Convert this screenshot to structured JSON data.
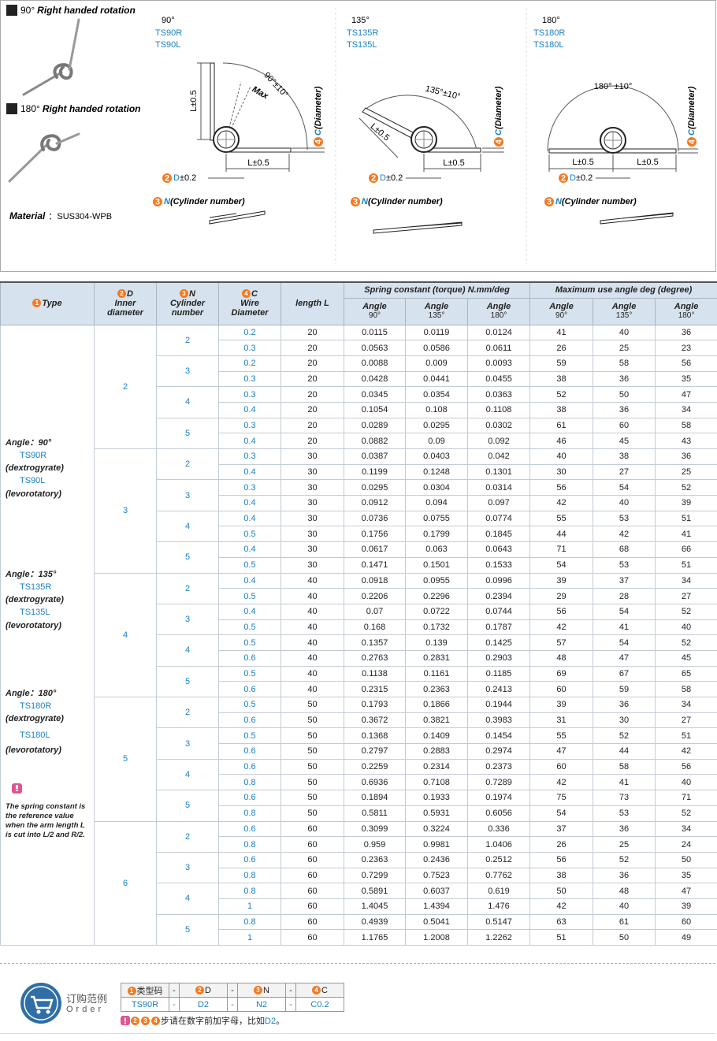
{
  "legend": [
    {
      "deg": "90°",
      "text": "Right handed rotation"
    },
    {
      "deg": "180°",
      "text": "Right handed rotation"
    }
  ],
  "material": {
    "label": "Material",
    "value": "：SUS304-WPB"
  },
  "diagrams": [
    {
      "angle": "90°",
      "codes": [
        "TS90R",
        "TS90L"
      ],
      "arc": "90°±10°",
      "max": "Max",
      "l": [
        "L±0.5",
        "L±0.5"
      ],
      "c": {
        "num": "4",
        "code": "C",
        "text": "(Diameter)"
      },
      "d": {
        "num": "2",
        "code": "D",
        "text": "±0.2"
      },
      "n": {
        "num": "3",
        "code": "N",
        "text": "(Cylinder number)"
      }
    },
    {
      "angle": "135°",
      "codes": [
        "TS135R",
        "TS135L"
      ],
      "arc": "135°±10°",
      "l": [
        "L±0.5",
        "L±0.5"
      ],
      "c": {
        "num": "4",
        "code": "C",
        "text": "(Diameter)"
      },
      "d": {
        "num": "2",
        "code": "D",
        "text": "±0.2"
      },
      "n": {
        "num": "3",
        "code": "N",
        "text": "(Cylinder number)"
      }
    },
    {
      "angle": "180°",
      "codes": [
        "TS180R",
        "TS180L"
      ],
      "arc": "180° ±10°",
      "l": [
        "L±0.5",
        "L±0.5"
      ],
      "c": {
        "num": "4",
        "code": "C",
        "text": "(Diameter)"
      },
      "d": {
        "num": "2",
        "code": "D",
        "text": "±0.2"
      },
      "n": {
        "num": "3",
        "code": "N",
        "text": "(Cylinder number)"
      }
    }
  ],
  "table": {
    "header": {
      "type": {
        "num": "1",
        "text": "Type"
      },
      "d": {
        "num": "2",
        "code": "D",
        "text": "Inner diameter"
      },
      "n": {
        "num": "3",
        "code": "N",
        "text": "Cylinder number"
      },
      "c": {
        "num": "4",
        "code": "C",
        "text": "Wire Diameter"
      },
      "length": "length L",
      "spring": "Spring constant (torque) N.mm/deg",
      "max": "Maximum use angle  deg (degree)",
      "spring_cols": [
        {
          "label": "Angle",
          "deg": "90°"
        },
        {
          "label": "Angle",
          "deg": "135°"
        },
        {
          "label": "Angle",
          "deg": "180°"
        }
      ],
      "max_cols": [
        {
          "label": "Angle",
          "deg": "90°"
        },
        {
          "label": "Angle",
          "deg": "135°"
        },
        {
          "label": "Angle",
          "deg": "180°"
        }
      ]
    },
    "type_column": {
      "groups": [
        {
          "angle": "Angle：90°",
          "r": "TS90R",
          "r_note": "(dextrogyrate)",
          "l": "TS90L",
          "l_note": "(levorotatory)"
        },
        {
          "angle": "Angle：135°",
          "r": "TS135R",
          "r_note": "(dextrogyrate)",
          "l": "TS135L",
          "l_note": "(levorotatory)"
        },
        {
          "angle": "Angle：180°",
          "r": "TS180R",
          "r_note": "(dextrogyrate)",
          "l": "TS180L",
          "l_note": "(levorotatory)"
        }
      ],
      "note": "The spring constant is the reference value when the arm length L is cut into L/2 and R/2."
    },
    "groups": [
      {
        "d": 2,
        "sub": [
          {
            "n": 2,
            "rows": [
              [
                0.2,
                20,
                0.0115,
                0.0119,
                0.0124,
                41,
                40,
                36
              ],
              [
                0.3,
                20,
                0.0563,
                0.0586,
                0.0611,
                26,
                25,
                23
              ]
            ]
          },
          {
            "n": 3,
            "rows": [
              [
                0.2,
                20,
                0.0088,
                0.009,
                0.0093,
                59,
                58,
                56
              ],
              [
                0.3,
                20,
                0.0428,
                0.0441,
                0.0455,
                38,
                36,
                35
              ]
            ]
          },
          {
            "n": 4,
            "rows": [
              [
                0.3,
                20,
                0.0345,
                0.0354,
                0.0363,
                52,
                50,
                47
              ],
              [
                0.4,
                20,
                0.1054,
                0.108,
                0.1108,
                38,
                36,
                34
              ]
            ]
          },
          {
            "n": 5,
            "rows": [
              [
                0.3,
                20,
                0.0289,
                0.0295,
                0.0302,
                61,
                60,
                58
              ],
              [
                0.4,
                20,
                0.0882,
                0.09,
                0.092,
                46,
                45,
                43
              ]
            ]
          }
        ]
      },
      {
        "d": 3,
        "sub": [
          {
            "n": 2,
            "rows": [
              [
                0.3,
                30,
                0.0387,
                0.0403,
                0.042,
                40,
                38,
                36
              ],
              [
                0.4,
                30,
                0.1199,
                0.1248,
                0.1301,
                30,
                27,
                25
              ]
            ]
          },
          {
            "n": 3,
            "rows": [
              [
                0.3,
                30,
                0.0295,
                0.0304,
                0.0314,
                56,
                54,
                52
              ],
              [
                0.4,
                30,
                0.0912,
                0.094,
                0.097,
                42,
                40,
                39
              ]
            ]
          },
          {
            "n": 4,
            "rows": [
              [
                0.4,
                30,
                0.0736,
                0.0755,
                0.0774,
                55,
                53,
                51
              ],
              [
                0.5,
                30,
                0.1756,
                0.1799,
                0.1845,
                44,
                42,
                41
              ]
            ]
          },
          {
            "n": 5,
            "rows": [
              [
                0.4,
                30,
                0.0617,
                0.063,
                0.0643,
                71,
                68,
                66
              ],
              [
                0.5,
                30,
                0.1471,
                0.1501,
                0.1533,
                54,
                53,
                51
              ]
            ]
          }
        ]
      },
      {
        "d": 4,
        "sub": [
          {
            "n": 2,
            "rows": [
              [
                0.4,
                40,
                0.0918,
                0.0955,
                0.0996,
                39,
                37,
                34
              ],
              [
                0.5,
                40,
                0.2206,
                0.2296,
                0.2394,
                29,
                28,
                27
              ]
            ]
          },
          {
            "n": 3,
            "rows": [
              [
                0.4,
                40,
                0.07,
                0.0722,
                0.0744,
                56,
                54,
                52
              ],
              [
                0.5,
                40,
                0.168,
                0.1732,
                0.1787,
                42,
                41,
                40
              ]
            ]
          },
          {
            "n": 4,
            "rows": [
              [
                0.5,
                40,
                0.1357,
                0.139,
                0.1425,
                57,
                54,
                52
              ],
              [
                0.6,
                40,
                0.2763,
                0.2831,
                0.2903,
                48,
                47,
                45
              ]
            ]
          },
          {
            "n": 5,
            "rows": [
              [
                0.5,
                40,
                0.1138,
                0.1161,
                0.1185,
                69,
                67,
                65
              ],
              [
                0.6,
                40,
                0.2315,
                0.2363,
                0.2413,
                60,
                59,
                58
              ]
            ]
          }
        ]
      },
      {
        "d": 5,
        "sub": [
          {
            "n": 2,
            "rows": [
              [
                0.5,
                50,
                0.1793,
                0.1866,
                0.1944,
                39,
                36,
                34
              ],
              [
                0.6,
                50,
                0.3672,
                0.3821,
                0.3983,
                31,
                30,
                27
              ]
            ]
          },
          {
            "n": 3,
            "rows": [
              [
                0.5,
                50,
                0.1368,
                0.1409,
                0.1454,
                55,
                52,
                51
              ],
              [
                0.6,
                50,
                0.2797,
                0.2883,
                0.2974,
                47,
                44,
                42
              ]
            ]
          },
          {
            "n": 4,
            "rows": [
              [
                0.6,
                50,
                0.2259,
                0.2314,
                0.2373,
                60,
                58,
                56
              ],
              [
                0.8,
                50,
                0.6936,
                0.7108,
                0.7289,
                42,
                41,
                40
              ]
            ]
          },
          {
            "n": 5,
            "rows": [
              [
                0.6,
                50,
                0.1894,
                0.1933,
                0.1974,
                75,
                73,
                71
              ],
              [
                0.8,
                50,
                0.5811,
                0.5931,
                0.6056,
                54,
                53,
                52
              ]
            ]
          }
        ]
      },
      {
        "d": 6,
        "sub": [
          {
            "n": 2,
            "rows": [
              [
                0.6,
                60,
                0.3099,
                0.3224,
                0.336,
                37,
                36,
                34
              ],
              [
                0.8,
                60,
                0.959,
                0.9981,
                1.0406,
                26,
                25,
                24
              ]
            ]
          },
          {
            "n": 3,
            "rows": [
              [
                0.6,
                60,
                0.2363,
                0.2436,
                0.2512,
                56,
                52,
                50
              ],
              [
                0.8,
                60,
                0.7299,
                0.7523,
                0.7762,
                38,
                36,
                35
              ]
            ]
          },
          {
            "n": 4,
            "rows": [
              [
                0.8,
                60,
                0.5891,
                0.6037,
                0.619,
                50,
                48,
                47
              ],
              [
                1,
                60,
                1.4045,
                1.4394,
                1.476,
                42,
                40,
                39
              ]
            ]
          },
          {
            "n": 5,
            "rows": [
              [
                0.8,
                60,
                0.4939,
                0.5041,
                0.5147,
                63,
                61,
                60
              ],
              [
                1,
                60,
                1.1765,
                1.2008,
                1.2262,
                51,
                50,
                49
              ]
            ]
          }
        ]
      }
    ]
  },
  "order": {
    "title": "订购范例",
    "subtitle": "Order",
    "head": [
      {
        "num": "1",
        "text": "类型码"
      },
      {
        "text": "-"
      },
      {
        "num": "2",
        "text": "D"
      },
      {
        "text": "-"
      },
      {
        "num": "3",
        "text": "N"
      },
      {
        "text": "-"
      },
      {
        "num": "4",
        "text": "C"
      }
    ],
    "values": [
      "TS90R",
      "-",
      "D2",
      "-",
      "N2",
      "-",
      "C0.2"
    ],
    "note": {
      "nums": [
        "2",
        "3",
        "4"
      ],
      "text": "步请在数字前加字母，比如",
      "code": "D2",
      "end": "。"
    }
  }
}
